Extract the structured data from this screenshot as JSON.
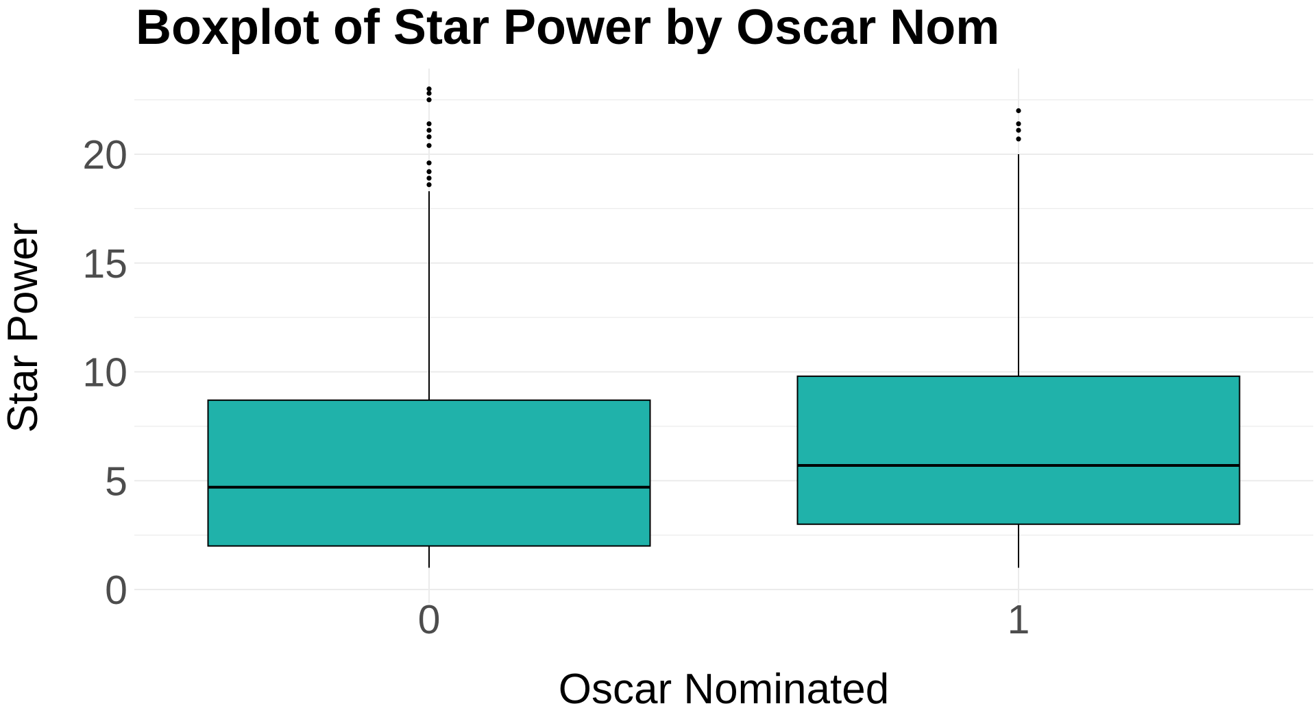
{
  "chart_data": {
    "type": "boxplot",
    "title": "Boxplot of Star Power by Oscar Nom",
    "xlabel": "Oscar Nominated",
    "ylabel": "Star Power",
    "categories": [
      "0",
      "1"
    ],
    "ylim": [
      -0.5,
      24.5
    ],
    "y_ticks": [
      0,
      5,
      10,
      15,
      20
    ],
    "y_tick_labels": [
      "0",
      "5",
      "10",
      "15",
      "20"
    ],
    "grid": true,
    "legend": "none",
    "fill_color": "#20B2AA",
    "boxes": [
      {
        "category": "0",
        "whisker_low": 1.0,
        "q1": 2.0,
        "median": 4.7,
        "q3": 8.7,
        "whisker_high": 18.3,
        "outliers": [
          18.6,
          18.9,
          19.2,
          19.6,
          20.4,
          20.8,
          21.1,
          21.4,
          22.5,
          22.8,
          23.0
        ]
      },
      {
        "category": "1",
        "whisker_low": 1.0,
        "q1": 3.0,
        "median": 5.7,
        "q3": 9.8,
        "whisker_high": 20.0,
        "outliers": [
          20.7,
          21.1,
          21.4,
          22.0
        ]
      }
    ]
  }
}
